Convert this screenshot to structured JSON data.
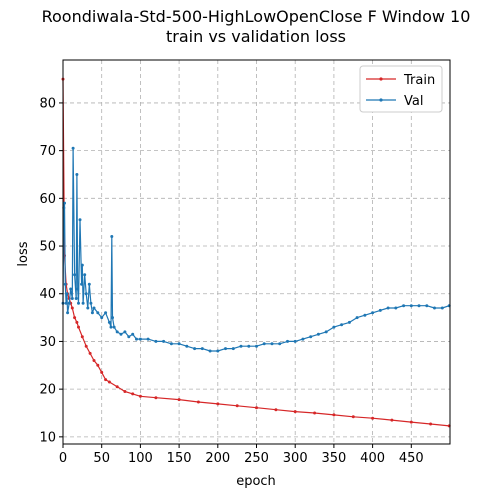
{
  "chart_data": {
    "type": "line",
    "title": "Roondiwala-Std-500-HighLowOpenClose F Window 10",
    "subtitle": "train vs validation loss",
    "xlabel": "epoch",
    "ylabel": "loss",
    "xlim": [
      0,
      500
    ],
    "ylim": [
      8.5,
      89
    ],
    "xticks": [
      0,
      50,
      100,
      150,
      200,
      250,
      300,
      350,
      400,
      450
    ],
    "yticks": [
      10,
      20,
      30,
      40,
      50,
      60,
      70,
      80
    ],
    "grid": true,
    "legend_position": "top-right",
    "series": [
      {
        "name": "Train",
        "color": "#d62728",
        "x": [
          0,
          2,
          4,
          6,
          8,
          10,
          12,
          15,
          18,
          20,
          25,
          30,
          35,
          40,
          45,
          50,
          55,
          60,
          70,
          80,
          90,
          100,
          120,
          150,
          175,
          200,
          225,
          250,
          275,
          300,
          325,
          350,
          375,
          400,
          425,
          450,
          475,
          499
        ],
        "y": [
          85,
          48,
          42,
          40,
          39,
          38,
          37,
          35,
          34,
          33,
          31,
          29,
          27.5,
          26,
          25,
          23.5,
          22,
          21.5,
          20.5,
          19.5,
          19,
          18.5,
          18.2,
          17.8,
          17.3,
          16.9,
          16.5,
          16.1,
          15.7,
          15.3,
          15,
          14.6,
          14.2,
          13.9,
          13.5,
          13.1,
          12.7,
          12.3
        ]
      },
      {
        "name": "Val",
        "color": "#1f77b4",
        "x": [
          0,
          1,
          2,
          3,
          4,
          5,
          6,
          8,
          10,
          12,
          13,
          15,
          17,
          18,
          19,
          20,
          22,
          24,
          25,
          26,
          28,
          30,
          32,
          34,
          36,
          38,
          40,
          45,
          50,
          55,
          60,
          62,
          63,
          64,
          66,
          70,
          75,
          80,
          85,
          90,
          95,
          100,
          110,
          120,
          130,
          140,
          150,
          160,
          170,
          180,
          190,
          200,
          210,
          220,
          230,
          240,
          250,
          260,
          270,
          280,
          290,
          300,
          310,
          320,
          330,
          340,
          350,
          360,
          370,
          380,
          390,
          400,
          410,
          420,
          430,
          440,
          450,
          460,
          470,
          480,
          490,
          499
        ],
        "y": [
          38,
          58,
          59,
          42,
          38,
          40,
          36,
          38,
          41,
          39,
          70.5,
          44,
          39,
          65,
          41,
          38,
          55.5,
          42,
          46,
          38,
          44,
          40,
          37,
          42,
          38,
          36,
          37,
          36,
          35,
          36,
          34,
          33,
          52,
          35,
          33,
          32,
          31.5,
          32,
          31,
          31.5,
          30.5,
          30.5,
          30.5,
          30,
          30,
          29.5,
          29.5,
          29,
          28.5,
          28.5,
          28,
          28,
          28.5,
          28.5,
          29,
          29,
          29,
          29.5,
          29.5,
          29.5,
          30,
          30,
          30.5,
          31,
          31.5,
          32,
          33,
          33.5,
          34,
          35,
          35.5,
          36,
          36.5,
          37,
          37,
          37.5,
          37.5,
          37.5,
          37.5,
          37,
          37,
          37.5
        ]
      }
    ]
  }
}
